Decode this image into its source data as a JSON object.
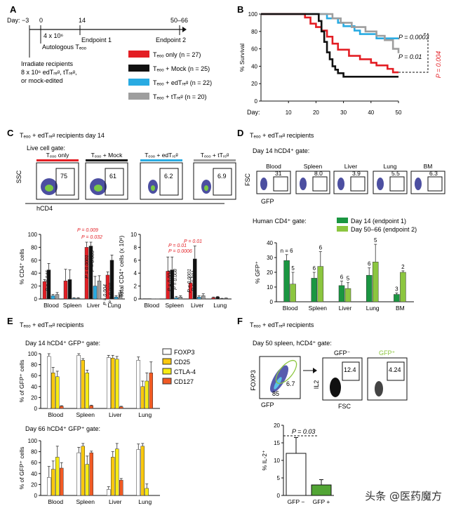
{
  "panels": {
    "A": {
      "label": "A",
      "day_label": "Day: −3",
      "ticks": [
        "0",
        "14",
        "50–66"
      ],
      "dose": "4 x 10⁶",
      "autologous": "Autologous Tₑₒₒ",
      "endpoint1": "Endpoint 1",
      "endpoint2": "Endpoint 2",
      "irradiate": [
        "Irradiate recipients",
        "8 x 10⁶ edTᵣₑᵍ, tTᵣₑᵍ,",
        "or mock-edited"
      ],
      "legend": [
        {
          "label": "Tₑₒₒ only (n = 27)",
          "color": "#e31e24"
        },
        {
          "label": "Tₑₒₒ + Mock (n = 25)",
          "color": "#111111"
        },
        {
          "label": "Tₑₒₒ + edTᵣₑᵍ (n = 22)",
          "color": "#29abe2"
        },
        {
          "label": "Tₑₒₒ + tTᵣₑᵍ (n = 20)",
          "color": "#9e9e9e"
        }
      ]
    },
    "B": {
      "label": "B",
      "p1": "P = 0.0003",
      "p2": "P = 0.01",
      "p3": "P = 0.004",
      "xlabel": "Day:"
    },
    "C": {
      "label": "C",
      "title": "Tₑₒₒ + edTᵣₑᵍ recipients day 14",
      "gate": "Live cell gate:",
      "facs_titles": [
        "Tₑₒₒ only",
        "Tₑₒₒ + Mock",
        "Tₑₒₒ + edTᵣₑᵍ",
        "Tₑₒₒ + tTᵣₑᵍ"
      ],
      "facs_values": [
        "75",
        "61",
        "6.2",
        "6.9"
      ],
      "ssc": "SSC",
      "hcd4": "hCD4",
      "bar_colors": [
        "#e31e24",
        "#111111",
        "#29abe2",
        "#9e9e9e"
      ],
      "p_left": [
        {
          "text": "P = 0.046",
          "color": "#111"
        },
        {
          "text": "P = 0.009",
          "color": "#e31e24"
        },
        {
          "text": "P = 0.032",
          "color": "#e31e24"
        },
        {
          "text": "P = 0.0001",
          "color": "#111"
        },
        {
          "text": "P = 0.005",
          "color": "#111"
        },
        {
          "text": "P = 0.004",
          "color": "#111"
        },
        {
          "text": "P = 0.008",
          "color": "#111"
        }
      ],
      "p_right": [
        {
          "text": "P = 0.01",
          "color": "#e31e24"
        },
        {
          "text": "P = 0.0006",
          "color": "#e31e24"
        },
        {
          "text": "P = 0.004",
          "color": "#111"
        },
        {
          "text": "P = 0.008",
          "color": "#111"
        },
        {
          "text": "P = 0.01",
          "color": "#e31e24"
        },
        {
          "text": "P < 0.0001",
          "color": "#111"
        },
        {
          "text": "P < 0.001",
          "color": "#111"
        }
      ]
    },
    "D": {
      "label": "D",
      "title": "Tₑₒₒ + edTᵣₑᵍ recipients",
      "gate": "Day 14 hCD4⁺ gate:",
      "facs_titles": [
        "Blood",
        "Spleen",
        "Liver",
        "Lung",
        "BM"
      ],
      "facs_values": [
        "31",
        "8.0",
        "3.9",
        "5.5",
        "6.3"
      ],
      "fsc": "FSC",
      "gfp": "GFP",
      "human_gate": "Human CD4⁺ gate:",
      "legend": [
        {
          "label": "Day 14 (endpoint 1)",
          "color": "#1a9641"
        },
        {
          "label": "Day 50–66 (endpoint 2)",
          "color": "#8cc63f"
        }
      ],
      "n_labels": [
        "n = 6",
        "5",
        "6",
        "6",
        "6",
        "5",
        "6",
        "5",
        "3",
        "2"
      ]
    },
    "E": {
      "label": "E",
      "title": "Tₑₒₒ + edTᵣₑᵍ recipients",
      "top_gate": "Day 14 hCD4⁺ GFP⁺ gate:",
      "bottom_gate": "Day 66 hCD4⁺ GFP⁺ gate:",
      "legend": [
        {
          "label": "FOXP3",
          "color": "#ffffff"
        },
        {
          "label": "CD25",
          "color": "#f9c80e"
        },
        {
          "label": "CTLA-4",
          "color": "#f7ec13"
        },
        {
          "label": "CD127",
          "color": "#f15a24"
        }
      ]
    },
    "F": {
      "label": "F",
      "title": "Tₑₒₒ + edTᵣₑᵍ recipients",
      "gate": "Day 50  spleen, hCD4⁺ gate:",
      "foxp3": "FOXP3",
      "gfp": "GFP",
      "gate_hi": "6.7",
      "gate_lo": "85",
      "gfp_neg": "GFP⁻",
      "gfp_pos": "GFP⁺",
      "il2": "IL2",
      "fsc": "FSC",
      "box_neg": "12.4",
      "box_pos": "4.24",
      "p": "P = 0.03"
    }
  },
  "chart_data": [
    {
      "type": "line",
      "panel": "B",
      "ylabel": "% Survival",
      "xlabel": "Day:",
      "xlim": [
        0,
        50
      ],
      "ylim": [
        0,
        100
      ],
      "xticks": [
        10,
        20,
        30,
        40,
        50
      ],
      "yticks": [
        0,
        20,
        40,
        60,
        80,
        100
      ],
      "series": [
        {
          "color": "#29abe2",
          "x": [
            0,
            22,
            24,
            28,
            30,
            34,
            36,
            42,
            50
          ],
          "y": [
            100,
            100,
            95,
            90,
            86,
            81,
            77,
            72,
            72
          ]
        },
        {
          "color": "#9e9e9e",
          "x": [
            0,
            24,
            26,
            29,
            33,
            38,
            42,
            45,
            48,
            50
          ],
          "y": [
            100,
            100,
            95,
            90,
            85,
            80,
            75,
            70,
            60,
            55
          ]
        },
        {
          "color": "#e31e24",
          "x": [
            0,
            13,
            16,
            18,
            20,
            22,
            24,
            26,
            28,
            32,
            36,
            40,
            42,
            46,
            48,
            50
          ],
          "y": [
            100,
            100,
            96,
            89,
            85,
            81,
            74,
            66,
            59,
            52,
            48,
            44,
            41,
            37,
            33,
            33
          ]
        },
        {
          "color": "#111111",
          "x": [
            0,
            20,
            21,
            22,
            23,
            24,
            25,
            26,
            27,
            28,
            29,
            30,
            31,
            34,
            38,
            50
          ],
          "y": [
            100,
            100,
            92,
            80,
            68,
            56,
            48,
            40,
            36,
            32,
            32,
            28,
            28,
            28,
            28,
            28
          ]
        }
      ]
    },
    {
      "type": "bar",
      "panel": "C-left",
      "ylabel": "% CD4⁺ cells",
      "categories": [
        "Blood",
        "Spleen",
        "Liver",
        "Lung"
      ],
      "ylim": [
        0,
        100
      ],
      "yticks": [
        0,
        20,
        40,
        60,
        80,
        100
      ],
      "series": [
        {
          "values": [
            27,
            28,
            80,
            37
          ],
          "err": [
            3,
            18,
            8,
            5
          ]
        },
        {
          "values": [
            45,
            30,
            82,
            60
          ],
          "err": [
            10,
            15,
            6,
            8
          ]
        },
        {
          "values": [
            5,
            1,
            20,
            3
          ],
          "err": [
            2,
            1,
            15,
            2
          ]
        },
        {
          "values": [
            7,
            1,
            28,
            10
          ],
          "err": [
            3,
            1,
            8,
            3
          ]
        }
      ]
    },
    {
      "type": "bar",
      "panel": "C-right",
      "ylabel": "Total CD4⁺ cells (x 10⁶)",
      "categories": [
        "Blood",
        "Spleen",
        "Liver",
        "Lung"
      ],
      "ylim": [
        0,
        10
      ],
      "yticks": [
        0,
        2,
        4,
        6,
        8,
        10
      ],
      "series": [
        {
          "values": [
            0.05,
            4.3,
            2.5,
            0.2
          ],
          "err": [
            0,
            2.2,
            0.8,
            0.1
          ]
        },
        {
          "values": [
            0.05,
            4.5,
            6.2,
            0.3
          ],
          "err": [
            0,
            2,
            2,
            0.1
          ]
        },
        {
          "values": [
            0.02,
            0.2,
            0.3,
            0.05
          ],
          "err": [
            0,
            0.2,
            0.2,
            0.05
          ]
        },
        {
          "values": [
            0.02,
            0.3,
            0.5,
            0.1
          ],
          "err": [
            0,
            0.2,
            0.3,
            0.05
          ]
        }
      ]
    },
    {
      "type": "bar",
      "panel": "D",
      "ylabel": "% GFP⁺",
      "categories": [
        "Blood",
        "Spleen",
        "Liver",
        "Lung",
        "BM"
      ],
      "ylim": [
        0,
        40
      ],
      "yticks": [
        0,
        10,
        20,
        30,
        40
      ],
      "series": [
        {
          "name": "Day 14 (endpoint 1)",
          "values": [
            28,
            16,
            11,
            18,
            5
          ],
          "err": [
            4,
            4,
            3,
            5,
            1
          ]
        },
        {
          "name": "Day 50–66 (endpoint 2)",
          "values": [
            12,
            24,
            9,
            27,
            20
          ],
          "err": [
            8,
            10,
            4,
            12,
            1
          ]
        }
      ]
    },
    {
      "type": "bar",
      "panel": "E-top",
      "ylabel": "% of GFP⁺ cells",
      "categories": [
        "Blood",
        "Spleen",
        "Liver",
        "Lung"
      ],
      "ylim": [
        0,
        100
      ],
      "yticks": [
        0,
        20,
        40,
        60,
        80,
        100
      ],
      "series": [
        {
          "name": "FOXP3",
          "values": [
            95,
            97,
            93,
            88
          ],
          "err": [
            5,
            3,
            4,
            6
          ]
        },
        {
          "name": "CD25",
          "values": [
            65,
            88,
            92,
            40
          ],
          "err": [
            10,
            3,
            5,
            10
          ]
        },
        {
          "name": "CTLA-4",
          "values": [
            58,
            65,
            90,
            50
          ],
          "err": [
            10,
            5,
            5,
            15
          ]
        },
        {
          "name": "CD127",
          "values": [
            4,
            5,
            3,
            65
          ],
          "err": [
            1,
            1,
            1,
            20
          ]
        }
      ]
    },
    {
      "type": "bar",
      "panel": "E-bottom",
      "ylabel": "% of GFP⁺ cells",
      "categories": [
        "Blood",
        "Spleen",
        "Liver",
        "Lung"
      ],
      "ylim": [
        0,
        100
      ],
      "yticks": [
        0,
        20,
        40,
        60,
        80,
        100
      ],
      "series": [
        {
          "name": "FOXP3",
          "values": [
            33,
            78,
            11,
            84
          ],
          "err": [
            20,
            10,
            5,
            10
          ]
        },
        {
          "name": "CD25",
          "values": [
            48,
            90,
            70,
            90
          ],
          "err": [
            15,
            5,
            10,
            5
          ]
        },
        {
          "name": "CTLA-4",
          "values": [
            70,
            57,
            85,
            13
          ],
          "err": [
            20,
            15,
            10,
            8
          ]
        },
        {
          "name": "CD127",
          "values": [
            50,
            78,
            28,
            0
          ],
          "err": [
            10,
            3,
            3,
            0
          ]
        }
      ]
    },
    {
      "type": "bar",
      "panel": "F",
      "ylabel": "% IL-2⁺",
      "categories": [
        "GFP −",
        "GFP +"
      ],
      "ylim": [
        0,
        20
      ],
      "yticks": [
        0,
        5,
        10,
        15,
        20
      ],
      "values": [
        12,
        3
      ],
      "err": [
        4.5,
        1.5
      ],
      "colors": [
        "#ffffff",
        "#52a535"
      ]
    }
  ],
  "watermark": "头条 @医药魔方"
}
